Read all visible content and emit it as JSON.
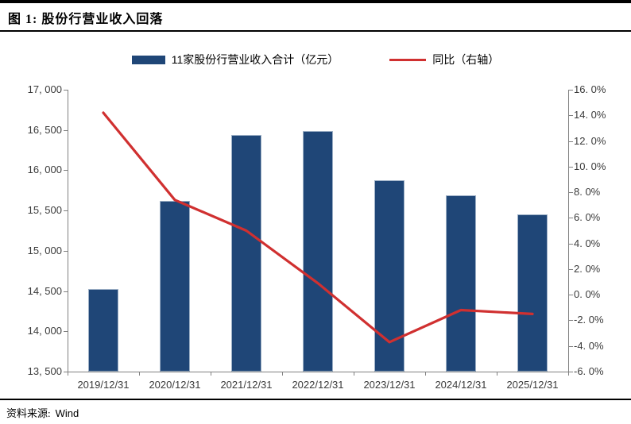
{
  "header": {
    "title": "图 1: 股份行营业收入回落"
  },
  "footer": {
    "source_label": "资料来源:",
    "source_value": "Wind"
  },
  "chart_data": {
    "type": "bar",
    "title": "图 1: 股份行营业收入回落",
    "categories": [
      "2019/12/31",
      "2020/12/31",
      "2021/12/31",
      "2022/12/31",
      "2023/12/31",
      "2024/12/31",
      "2025/12/31"
    ],
    "series": [
      {
        "name": "11家股份行营业收入合计（亿元）",
        "type": "bar",
        "axis": "left",
        "color": "#1F4677",
        "values": [
          14530,
          15620,
          16440,
          16490,
          15880,
          15690,
          15450
        ]
      },
      {
        "name": "同比（右轴）",
        "type": "line",
        "axis": "right",
        "color": "#D03030",
        "values": [
          14.2,
          7.4,
          5.0,
          0.9,
          -3.7,
          -1.2,
          -1.5
        ]
      }
    ],
    "left_axis": {
      "min": 13500,
      "max": 17000,
      "step": 500,
      "tick_labels_top_to_bottom": [
        "17, 000",
        "16, 500",
        "16, 000",
        "15, 500",
        "15, 000",
        "14, 500",
        "14, 000",
        "13, 500"
      ]
    },
    "right_axis": {
      "min": -6.0,
      "max": 16.0,
      "step": 2.0,
      "tick_labels_top_to_bottom": [
        "16. 0%",
        "14. 0%",
        "12. 0%",
        "10. 0%",
        "8. 0%",
        "6. 0%",
        "4. 0%",
        "2. 0%",
        "0. 0%",
        "-2. 0%",
        "-4. 0%",
        "-6. 0%"
      ]
    },
    "grid": false,
    "legend_position": "top"
  }
}
